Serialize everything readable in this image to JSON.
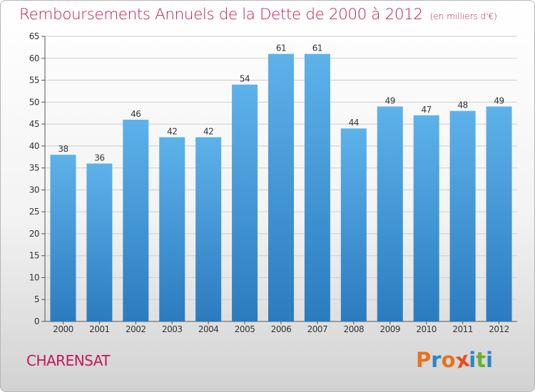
{
  "title": "Remboursements Annuels de la Dette de 2000 à 2012",
  "unit": "(en milliers d'€)",
  "commune": "CHARENSAT",
  "logo": {
    "letters": [
      "P",
      "r",
      "o",
      "x",
      "i",
      "t",
      "i"
    ],
    "colors": [
      "#e8731c",
      "#2e86c8",
      "#e8731c",
      "#e84d1c",
      "#2e86c8",
      "#68b02c",
      "#2e86c8"
    ]
  },
  "colors": {
    "bar_top": "#5eb2ea",
    "bar_bottom": "#2a7cbf",
    "title": "#c2185b",
    "grid": "#cccccc"
  },
  "chart_data": {
    "type": "bar",
    "title": "Remboursements Annuels de la Dette de 2000 à 2012",
    "xlabel": "",
    "ylabel": "",
    "categories": [
      "2000",
      "2001",
      "2002",
      "2003",
      "2004",
      "2005",
      "2006",
      "2007",
      "2008",
      "2009",
      "2010",
      "2011",
      "2012"
    ],
    "values": [
      38,
      36,
      46,
      42,
      42,
      54,
      61,
      61,
      44,
      49,
      47,
      48,
      49
    ],
    "ylim": [
      0,
      65
    ],
    "yticks": [
      0,
      5,
      10,
      15,
      20,
      25,
      30,
      35,
      40,
      45,
      50,
      55,
      60,
      65
    ],
    "grid": true,
    "data_labels": true
  }
}
